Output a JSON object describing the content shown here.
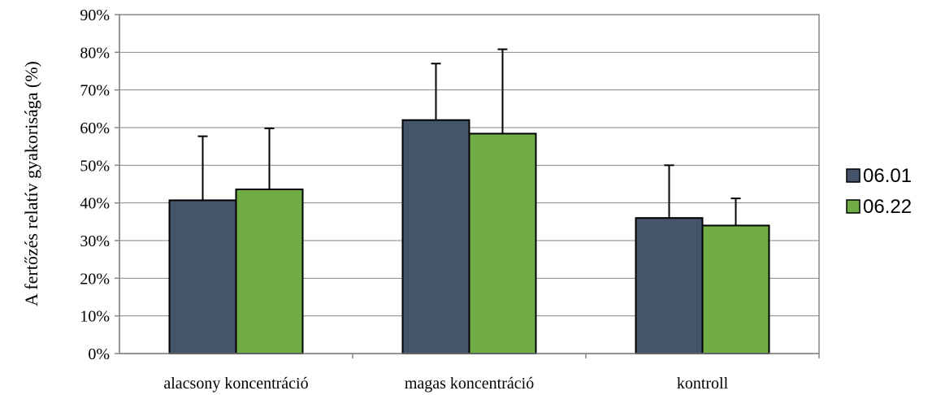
{
  "chart_data": {
    "type": "bar",
    "title": "",
    "xlabel": "",
    "ylabel": "A fertőzés relatív gyakorisága (%)",
    "ylim": [
      0,
      90
    ],
    "yticks": [
      "0%",
      "10%",
      "20%",
      "30%",
      "40%",
      "50%",
      "60%",
      "70%",
      "80%",
      "90%"
    ],
    "grid": true,
    "legend_position": "right",
    "categories": [
      "alacsony koncentráció",
      "magas koncentráció",
      "kontroll"
    ],
    "series": [
      {
        "name": "06.01",
        "color": "#44546a",
        "values": [
          40.7,
          62.0,
          36.0
        ],
        "error": [
          17.0,
          15.0,
          14.0
        ]
      },
      {
        "name": "06.22",
        "color": "#70ad47",
        "values": [
          43.6,
          58.4,
          34.0
        ],
        "error": [
          16.2,
          22.4,
          7.2
        ]
      }
    ]
  }
}
